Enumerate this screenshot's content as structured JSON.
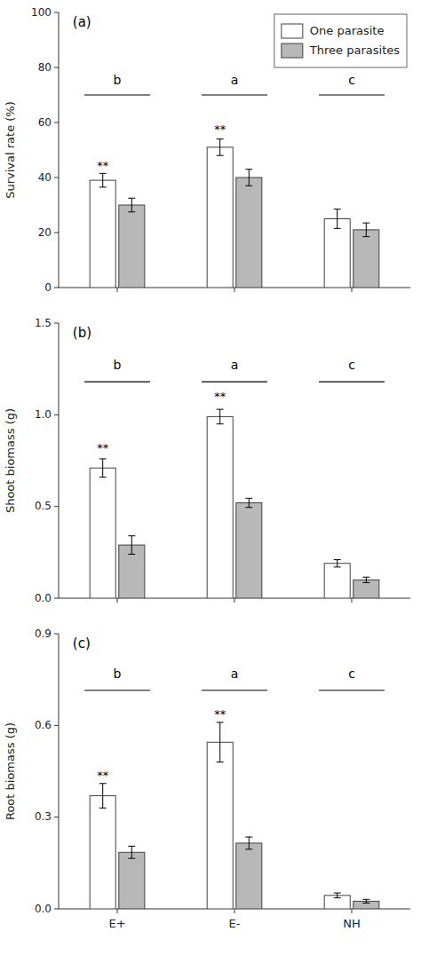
{
  "chart_data": [
    {
      "type": "bar",
      "title": "(a)",
      "y_label": "Survival rate (%)",
      "categories": [
        null,
        null,
        null
      ],
      "series": [
        {
          "name": "One parasite",
          "color": "#ffffff",
          "values": [
            39,
            51,
            25
          ],
          "errors": [
            2.5,
            3.0,
            3.5
          ],
          "sig_labels": [
            "**",
            "**",
            null
          ],
          "sig_y": [
            43,
            56,
            null
          ]
        },
        {
          "name": "Three parasites",
          "color": "#b8b8b8",
          "values": [
            30,
            40,
            21
          ],
          "errors": [
            2.5,
            3.0,
            2.5
          ]
        }
      ],
      "group_labels": [
        "b",
        "a",
        "c"
      ],
      "group_label_y": 74,
      "bracket_y": 70,
      "ylim": [
        0,
        100
      ],
      "yticks": [
        0,
        20,
        40,
        60,
        80,
        100
      ],
      "grid": false,
      "legend": "upper right",
      "tick_labels": "y"
    },
    {
      "type": "bar",
      "title": "(b)",
      "y_label": "Shoot biomass (g)",
      "categories": [
        null,
        null,
        null
      ],
      "series": [
        {
          "color": "#ffffff",
          "values": [
            0.71,
            0.99,
            0.19
          ],
          "errors": [
            0.05,
            0.04,
            0.02
          ],
          "sig_labels": [
            "**",
            "**",
            null
          ],
          "sig_y": [
            0.8,
            1.08,
            null
          ]
        },
        {
          "color": "#b8b8b8",
          "values": [
            0.29,
            0.52,
            0.1
          ],
          "errors": [
            0.05,
            0.025,
            0.015
          ]
        }
      ],
      "group_labels": [
        "b",
        "a",
        "c"
      ],
      "group_label_y": 1.25,
      "bracket_y": 1.18,
      "ylim": [
        0,
        1.5
      ],
      "yticks": [
        {
          "value": 0.0,
          "label": "0.0"
        },
        0.5,
        {
          "value": 1.0,
          "label": "1.0"
        },
        1.5
      ],
      "grid": false,
      "tick_labels": "y"
    },
    {
      "type": "bar",
      "title": "(c)",
      "y_label": "Root biomass (g)",
      "categories": [
        "E+",
        "E-",
        "NH"
      ],
      "series": [
        {
          "color": "#ffffff",
          "values": [
            0.37,
            0.545,
            0.044
          ],
          "errors": [
            0.04,
            0.065,
            0.008
          ],
          "sig_labels": [
            "**",
            "**",
            null
          ],
          "sig_y": [
            0.425,
            0.625,
            null
          ]
        },
        {
          "color": "#b8b8b8",
          "values": [
            0.185,
            0.215,
            0.025
          ],
          "errors": [
            0.02,
            0.02,
            0.006
          ]
        }
      ],
      "group_labels": [
        "b",
        "a",
        "c"
      ],
      "group_label_y": 0.755,
      "bracket_y": 0.715,
      "ylim": [
        0,
        0.9
      ],
      "yticks": [
        {
          "value": 0.0,
          "label": "0.0"
        },
        0.3,
        0.6,
        0.9
      ],
      "grid": false
    }
  ]
}
